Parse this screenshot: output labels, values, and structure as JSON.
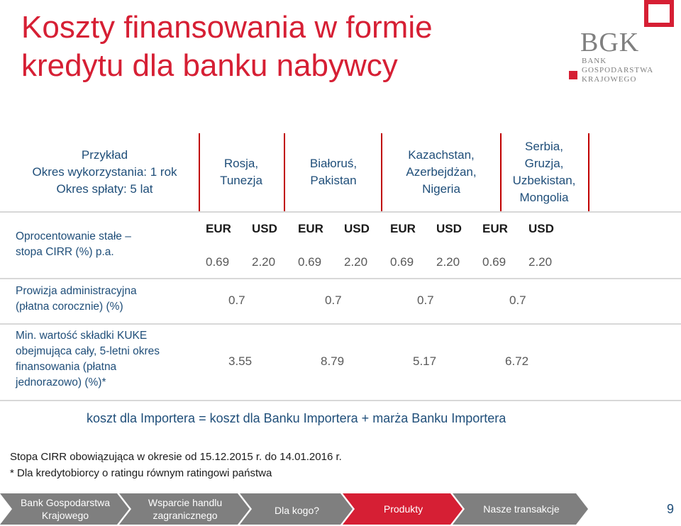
{
  "title": {
    "line1": "Koszty finansowania w formie",
    "line2": "kredytu dla banku nabywcy"
  },
  "logo": {
    "main": "BGK",
    "sub_line1": "BANK GOSPODARSTWA",
    "sub_line2": "KRAJOWEGO"
  },
  "table": {
    "corner": "Przykład\nOkres wykorzystania: 1 rok\nOkres spłaty: 5 lat",
    "columns": [
      "Rosja,\nTunezja",
      "Białoruś,\nPakistan",
      "Kazachstan,\nAzerbejdżan,\nNigeria",
      "Serbia,\nGruzja,\nUzbekistan,\nMongolia"
    ],
    "rows": {
      "fixed_rate": {
        "label": "Oprocentowanie stałe –\nstopa CIRR (%) p.a.",
        "currencies": [
          "EUR",
          "USD",
          "EUR",
          "USD",
          "EUR",
          "USD",
          "EUR",
          "USD"
        ],
        "values": [
          "0.69",
          "2.20",
          "0.69",
          "2.20",
          "0.69",
          "2.20",
          "0.69",
          "2.20"
        ]
      },
      "admin_fee": {
        "label": "Prowizja administracyjna\n(płatna corocznie) (%)",
        "values": [
          "0.7",
          "0.7",
          "0.7",
          "0.7"
        ]
      },
      "kuke_premium": {
        "label": "Min. wartość składki KUKE\nobejmująca cały, 5-letni okres\nfinansowania (płatna\njednorazowo) (%)*",
        "values": [
          "3.55",
          "8.79",
          "5.17",
          "6.72"
        ]
      }
    }
  },
  "formula": "koszt dla Importera = koszt dla Banku Importera + marża Banku Importera",
  "notes": [
    "Stopa CIRR obowiązująca w okresie od 15.12.2015 r. do 14.01.2016 r.",
    "* Dla kredytobiorcy o ratingu równym ratingowi państwa"
  ],
  "nav": {
    "items": [
      {
        "label": "Bank Gospodarstwa\nKrajowego",
        "active": false
      },
      {
        "label": "Wsparcie handlu\nzagranicznego",
        "active": false
      },
      {
        "label": "Dla kogo?",
        "active": false
      },
      {
        "label": "Produkty",
        "active": true
      },
      {
        "label": "Nasze transakcje",
        "active": false
      }
    ],
    "colors": {
      "inactive": "#7f7f7f",
      "active": "#d61f34"
    }
  },
  "page_number": "9",
  "colors": {
    "title": "#d61f34",
    "text_blue": "#1f4e79",
    "separator": "#c00000"
  }
}
